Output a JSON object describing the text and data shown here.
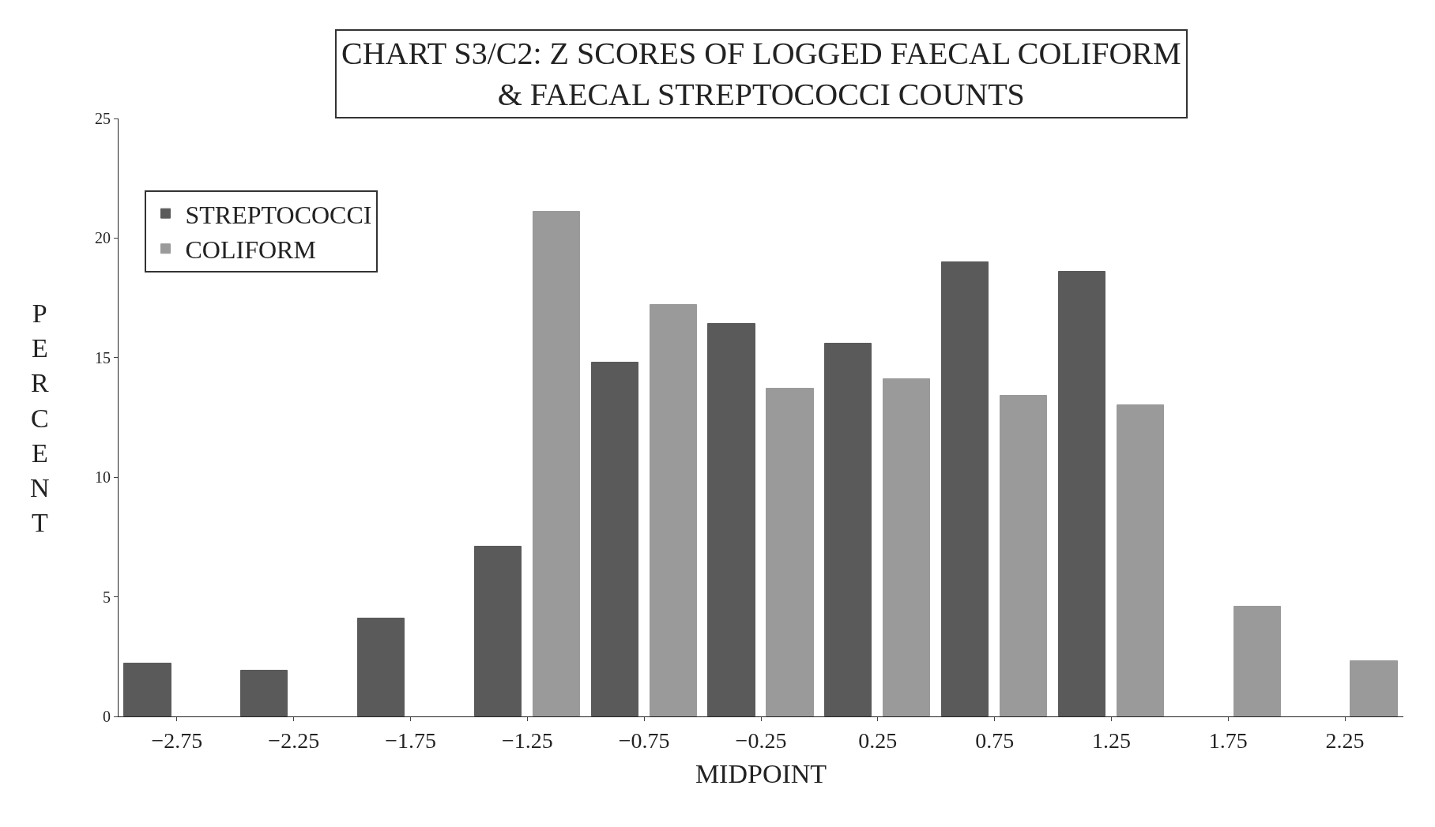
{
  "chart_data": {
    "type": "bar",
    "title": "CHART S3/C2: Z SCORES OF LOGGED FAECAL COLIFORM\n& FAECAL STREPTOCOCCI COUNTS",
    "xlabel": "MIDPOINT",
    "ylabel": "PERCENT",
    "categories": [
      "−2.75",
      "−2.25",
      "−1.75",
      "−1.25",
      "−0.75",
      "−0.25",
      "0.25",
      "0.75",
      "1.25",
      "1.75",
      "2.25"
    ],
    "series": [
      {
        "name": "STREPTOCOCCI",
        "color": "#5a5a5a",
        "values": [
          2.2,
          1.9,
          4.1,
          7.1,
          14.8,
          16.4,
          15.6,
          19.0,
          18.6,
          null,
          null
        ]
      },
      {
        "name": "COLIFORM",
        "color": "#9a9a9a",
        "values": [
          null,
          null,
          null,
          21.1,
          17.2,
          13.7,
          14.1,
          13.4,
          13.0,
          4.6,
          2.3
        ]
      }
    ],
    "ylim": [
      0,
      25
    ],
    "yticks": [
      0,
      5,
      10,
      15,
      20,
      25
    ],
    "legend": "top left"
  }
}
